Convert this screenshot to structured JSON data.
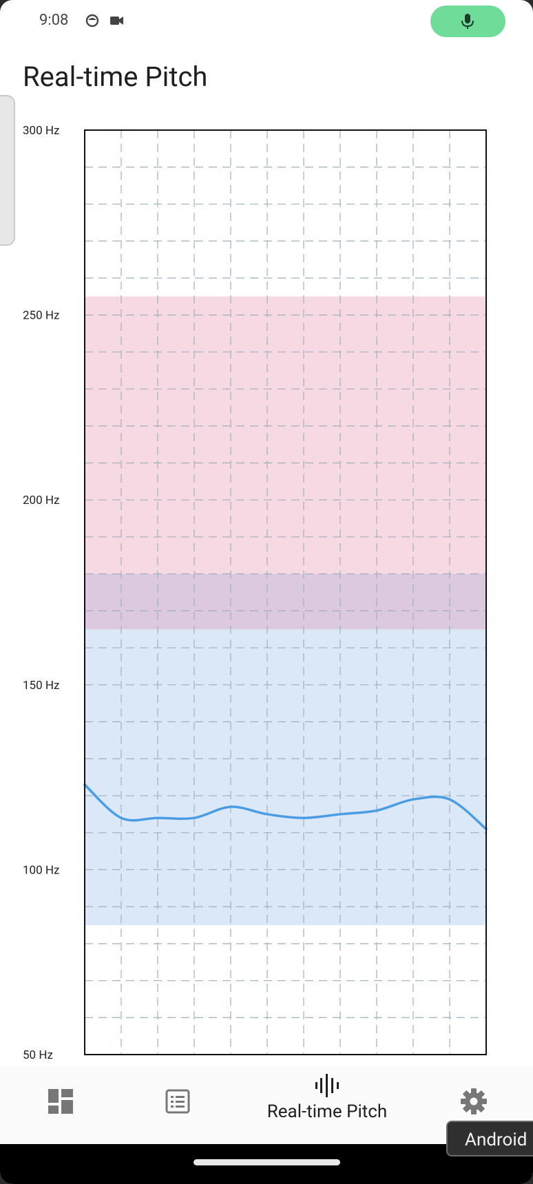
{
  "status_bar": {
    "time": "9:08",
    "icons": [
      "face-icon",
      "video-camera-icon"
    ],
    "mic_indicator": "microphone-icon",
    "mic_indicator_color": "#6fdd99"
  },
  "page": {
    "title": "Real-time Pitch"
  },
  "chart_data": {
    "type": "line",
    "title": "",
    "xlabel": "",
    "ylabel": "",
    "y_unit": "Hz",
    "ylim": [
      50,
      300
    ],
    "y_ticks": [
      50,
      100,
      150,
      200,
      250,
      300
    ],
    "y_tick_labels": [
      "50 Hz",
      "100 Hz",
      "150 Hz",
      "200 Hz",
      "250 Hz",
      "300 Hz"
    ],
    "grid": true,
    "bands": [
      {
        "from": 180,
        "to": 255,
        "color": "#f6d9e2"
      },
      {
        "from": 85,
        "to": 165,
        "color": "#dae8f8"
      },
      {
        "from": 165,
        "to": 180,
        "color": "#dcc9df"
      }
    ],
    "x": [
      0,
      1,
      2,
      3,
      4,
      5,
      6,
      7,
      8,
      9,
      10,
      11
    ],
    "series": [
      {
        "color": "#4a9de4",
        "values": [
          123,
          114,
          114,
          114,
          117,
          115,
          114,
          115,
          116,
          119,
          119,
          111
        ]
      }
    ]
  },
  "bottom_nav": {
    "items": [
      {
        "icon": "dashboard-icon",
        "label": ""
      },
      {
        "icon": "list-icon",
        "label": ""
      },
      {
        "icon": "waveform-icon",
        "label": "Real-time Pitch",
        "selected": true
      },
      {
        "icon": "settings-icon",
        "label": ""
      }
    ]
  },
  "toast": {
    "text": "Android"
  }
}
